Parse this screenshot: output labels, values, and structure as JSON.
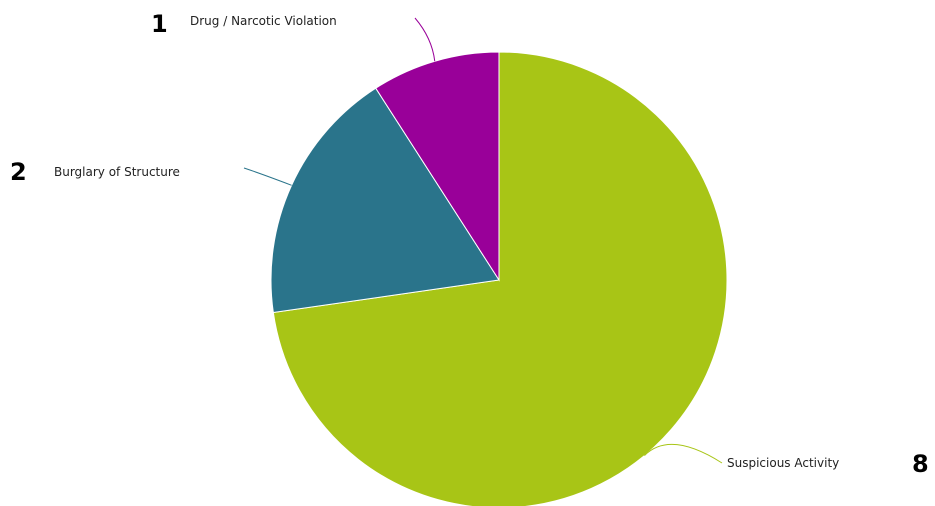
{
  "chart_data": {
    "type": "pie",
    "title": "",
    "slices": [
      {
        "label": "Suspicious Activity",
        "value": 8,
        "count_label": "8",
        "color": "#a8c516"
      },
      {
        "label": "Burglary of Structure",
        "value": 2,
        "count_label": "2",
        "color": "#2a748b"
      },
      {
        "label": "Drug / Narcotic Violation",
        "value": 1,
        "count_label": "1",
        "color": "#990099"
      }
    ],
    "start_angle_deg": 0,
    "direction": "clockwise",
    "legend": "none"
  }
}
